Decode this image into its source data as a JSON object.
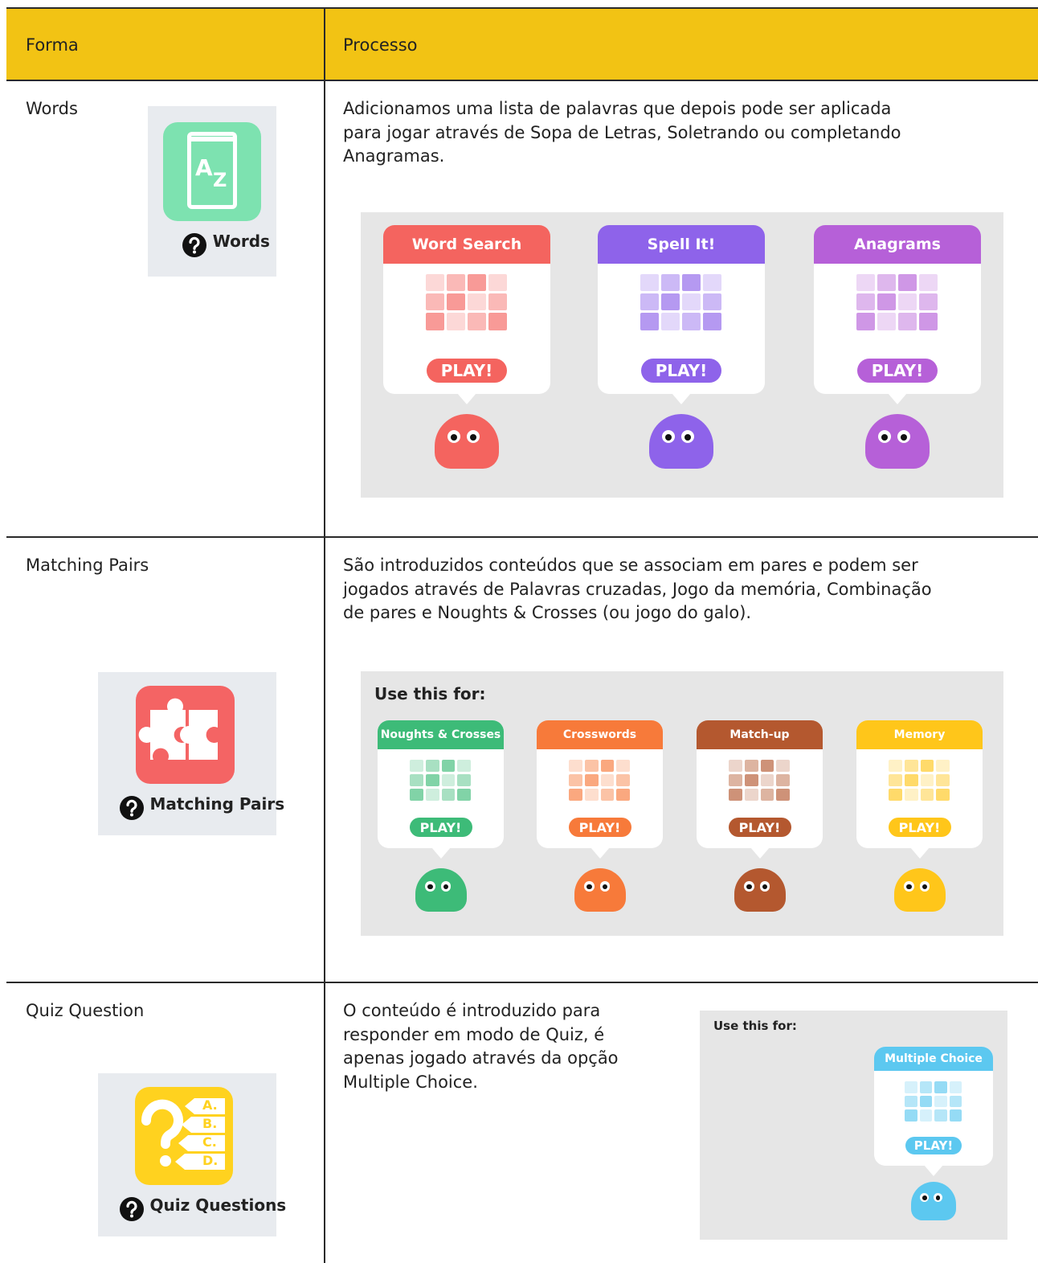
{
  "table": {
    "header": {
      "form": "Forma",
      "process": "Processo"
    },
    "rows": [
      {
        "form": "Words",
        "icon": {
          "glyphs": [
            "A",
            "Z"
          ],
          "label": "Words"
        },
        "description": [
          "Adicionamos uma lista de palavras que depois pode ser aplicada",
          "para jogar através de Sopa de Letras, Soletrando ou completando",
          "Anagramas."
        ],
        "panel": {
          "games": [
            {
              "title": "Word Search",
              "button": "PLAY!"
            },
            {
              "title": "Spell It!",
              "button": "PLAY!"
            },
            {
              "title": "Anagrams",
              "button": "PLAY!"
            }
          ]
        }
      },
      {
        "form": "Matching Pairs",
        "icon": {
          "label": "Matching Pairs"
        },
        "description": [
          "São introduzidos conteúdos que se associam em pares e podem ser",
          "jogados através de Palavras cruzadas, Jogo da memória, Combinação",
          "de pares e Noughts & Crosses (ou jogo do galo)."
        ],
        "panel": {
          "heading": "Use this for:",
          "games": [
            {
              "title": "Noughts & Crosses",
              "button": "PLAY!"
            },
            {
              "title": "Crosswords",
              "button": "PLAY!"
            },
            {
              "title": "Match-up",
              "button": "PLAY!"
            },
            {
              "title": "Memory",
              "button": "PLAY!"
            }
          ]
        }
      },
      {
        "form": "Quiz Question",
        "icon": {
          "glyphs": [
            "A.",
            "B.",
            "C.",
            "D."
          ],
          "label": "Quiz Questions"
        },
        "description": [
          "O conteúdo é introduzido para",
          "responder em modo de Quiz, é",
          "apenas jogado através da opção",
          "Multiple Choice."
        ],
        "panel": {
          "heading": "Use this for:",
          "games": [
            {
              "title": "Multiple Choice",
              "button": "PLAY!"
            }
          ]
        }
      }
    ]
  }
}
